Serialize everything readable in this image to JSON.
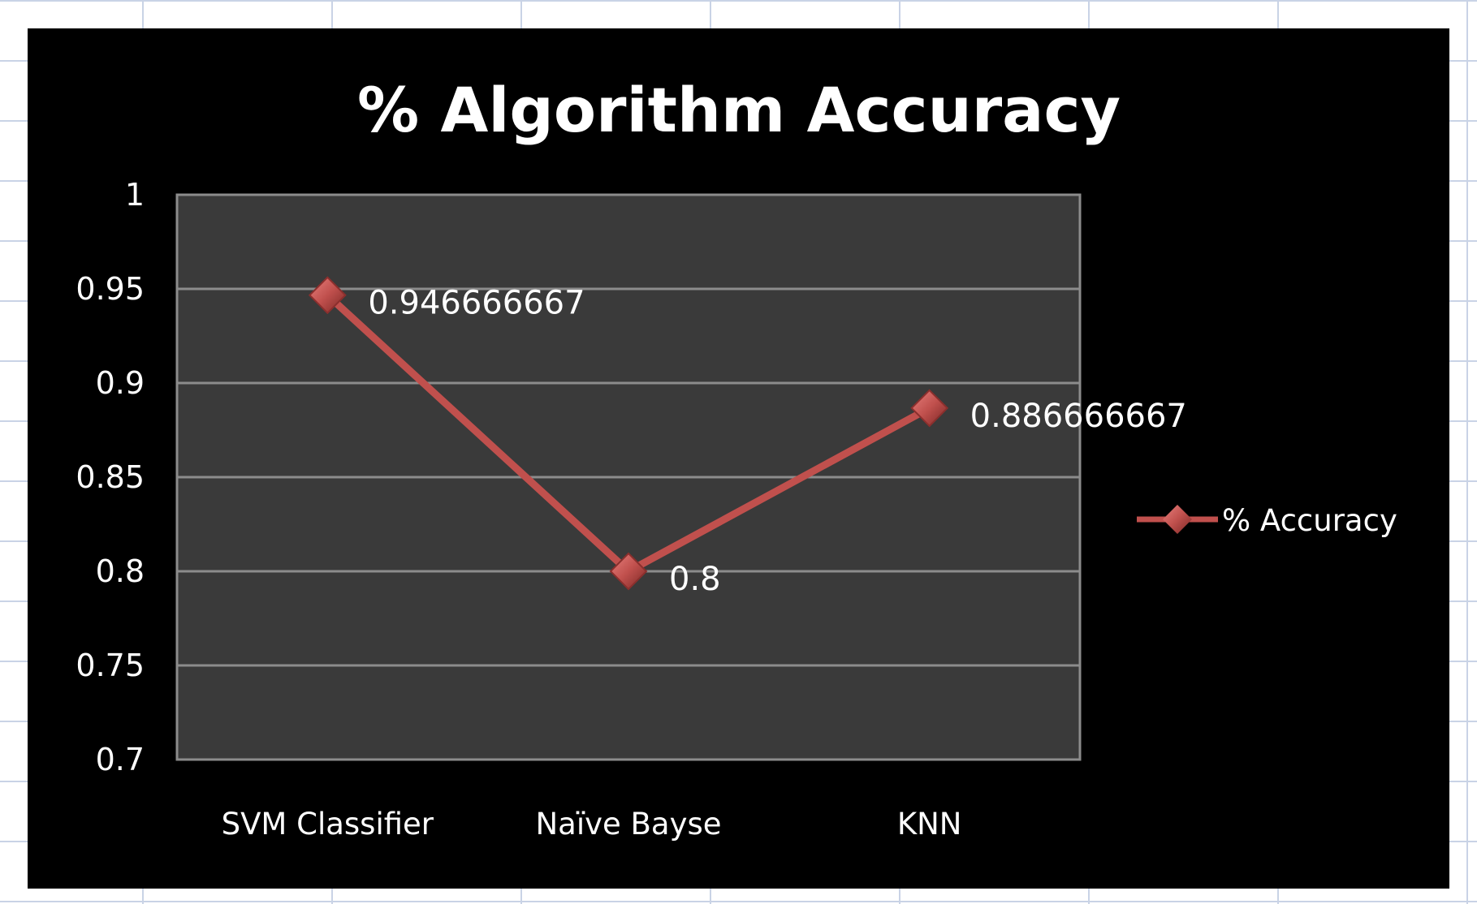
{
  "chart_data": {
    "type": "line",
    "title": "% Algorithm Accuracy",
    "categories": [
      "SVM Classifier",
      "Naïve Bayse",
      "KNN"
    ],
    "series": [
      {
        "name": "% Accuracy",
        "values": [
          0.946666667,
          0.8,
          0.886666667
        ],
        "data_labels": [
          "0.946666667",
          "0.8",
          "0.886666667"
        ],
        "color": "#c0504d"
      }
    ],
    "y_ticks": [
      "0.7",
      "0.75",
      "0.8",
      "0.85",
      "0.9",
      "0.95",
      "1"
    ],
    "ylim": [
      0.7,
      1
    ],
    "grid": true,
    "legend_position": "right",
    "colors": {
      "chart_background": "#000000",
      "plot_background": "#3a3a3a",
      "gridline": "#8c8c8c",
      "text": "#ffffff"
    }
  }
}
